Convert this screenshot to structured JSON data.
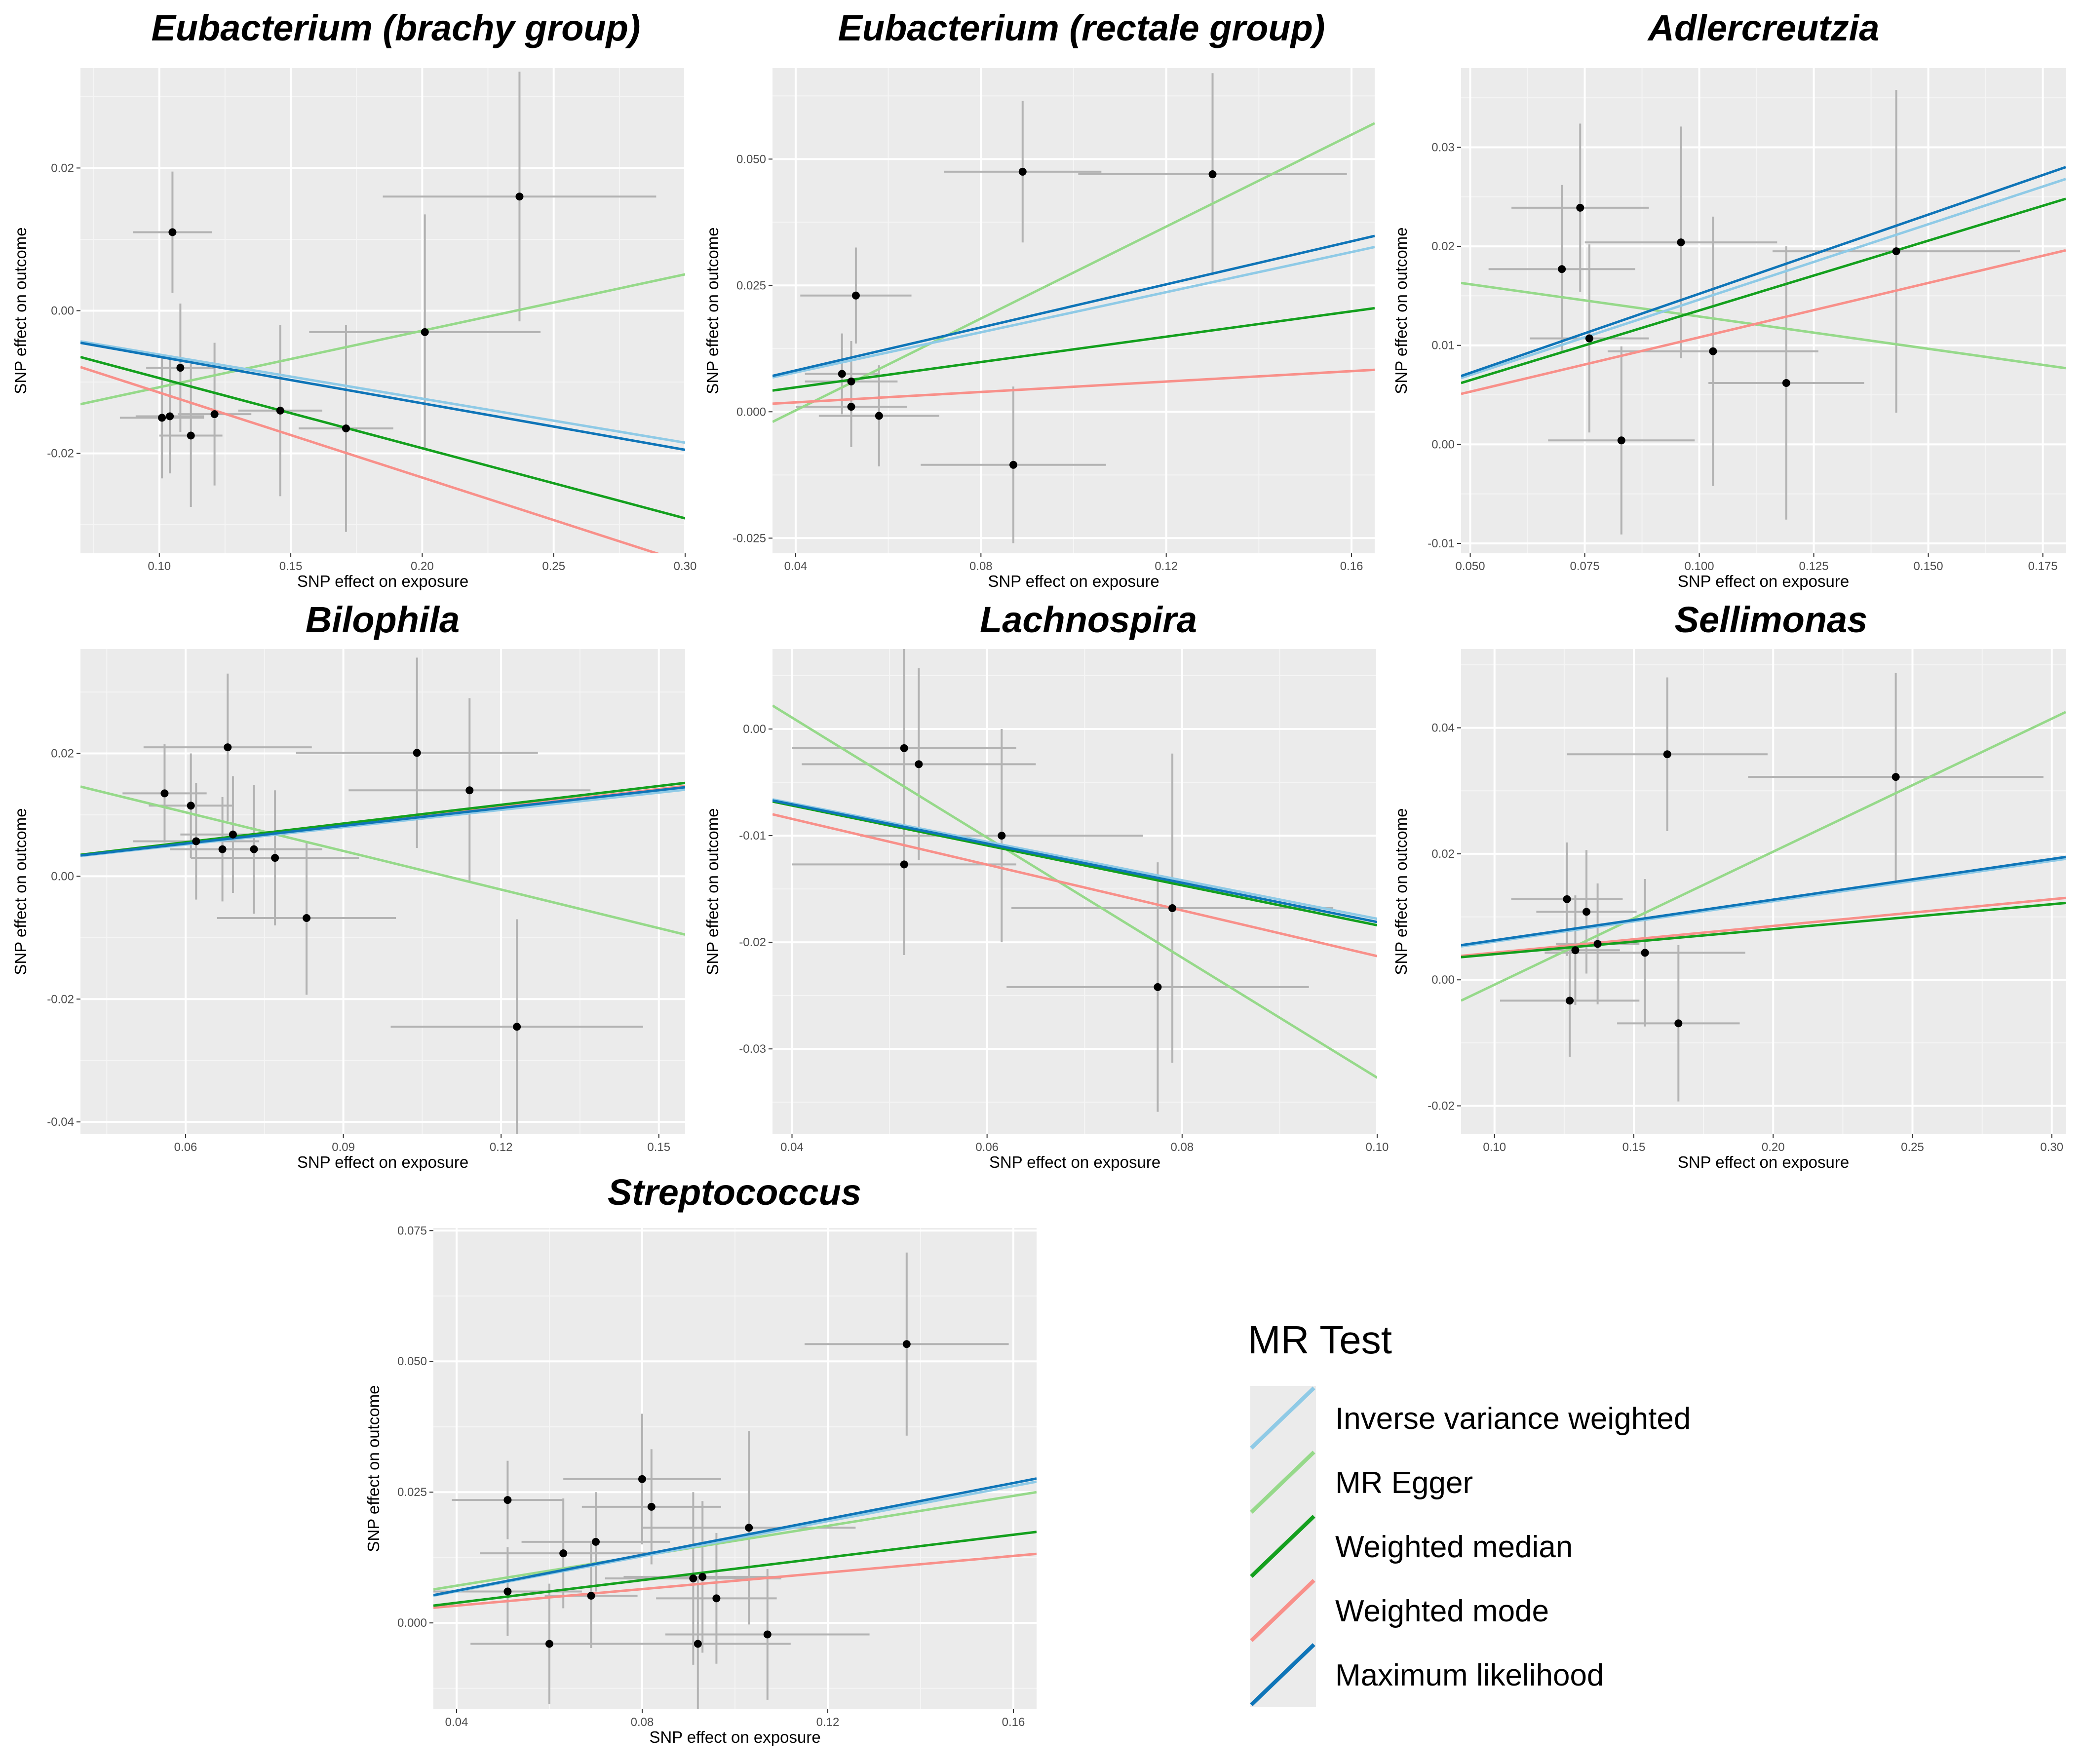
{
  "legend": {
    "title": "MR Test",
    "items": [
      {
        "label": "Inverse variance weighted",
        "color": "#8FCAE6"
      },
      {
        "label": "MR Egger",
        "color": "#96D98A"
      },
      {
        "label": "Weighted median",
        "color": "#14A01E"
      },
      {
        "label": "Weighted mode",
        "color": "#F8908A"
      },
      {
        "label": "Maximum likelihood",
        "color": "#0F75B8"
      }
    ]
  },
  "chart_data": [
    {
      "type": "scatter",
      "title": "Eubacterium (brachy group)",
      "xlabel": "SNP effect on exposure",
      "ylabel": "SNP effect on outcome",
      "xlim": [
        0.07,
        0.3
      ],
      "ylim": [
        -0.034,
        0.034
      ],
      "xticks": [
        0.1,
        0.15,
        0.2,
        0.25,
        0.3
      ],
      "yticks": [
        -0.02,
        0.0,
        0.02
      ],
      "points": [
        {
          "x": 0.105,
          "y": 0.011,
          "xerr": 0.015,
          "yerr": 0.0085
        },
        {
          "x": 0.108,
          "y": -0.008,
          "xerr": 0.013,
          "yerr": 0.009
        },
        {
          "x": 0.101,
          "y": -0.015,
          "xerr": 0.016,
          "yerr": 0.0085
        },
        {
          "x": 0.104,
          "y": -0.0148,
          "xerr": 0.013,
          "yerr": 0.008
        },
        {
          "x": 0.112,
          "y": -0.0175,
          "xerr": 0.012,
          "yerr": 0.01
        },
        {
          "x": 0.121,
          "y": -0.0145,
          "xerr": 0.014,
          "yerr": 0.01
        },
        {
          "x": 0.146,
          "y": -0.014,
          "xerr": 0.016,
          "yerr": 0.012
        },
        {
          "x": 0.171,
          "y": -0.0165,
          "xerr": 0.018,
          "yerr": 0.0145
        },
        {
          "x": 0.201,
          "y": -0.003,
          "xerr": 0.044,
          "yerr": 0.0165
        },
        {
          "x": 0.237,
          "y": 0.016,
          "xerr": 0.052,
          "yerr": 0.0175
        }
      ],
      "lines": [
        {
          "method": "Inverse variance weighted",
          "x": [
            0.07,
            0.3
          ],
          "y": [
            -0.0043,
            -0.0185
          ]
        },
        {
          "method": "MR Egger",
          "x": [
            0.07,
            0.3
          ],
          "y": [
            -0.0131,
            0.0051
          ]
        },
        {
          "method": "Weighted median",
          "x": [
            0.07,
            0.3
          ],
          "y": [
            -0.0065,
            -0.0291
          ]
        },
        {
          "method": "Weighted mode",
          "x": [
            0.07,
            0.3
          ],
          "y": [
            -0.0079,
            -0.0353
          ]
        },
        {
          "method": "Maximum likelihood",
          "x": [
            0.07,
            0.3
          ],
          "y": [
            -0.0045,
            -0.0195
          ]
        }
      ]
    },
    {
      "type": "scatter",
      "title": "Eubacterium (rectale group)",
      "xlabel": "SNP effect on exposure",
      "ylabel": "SNP effect on outcome",
      "xlim": [
        0.035,
        0.165
      ],
      "ylim": [
        -0.028,
        0.068
      ],
      "xticks": [
        0.04,
        0.08,
        0.12,
        0.16
      ],
      "yticks": [
        -0.025,
        0.0,
        0.025,
        0.05
      ],
      "points": [
        {
          "x": 0.053,
          "y": 0.023,
          "xerr": 0.012,
          "yerr": 0.0095
        },
        {
          "x": 0.05,
          "y": 0.0075,
          "xerr": 0.008,
          "yerr": 0.008
        },
        {
          "x": 0.052,
          "y": 0.006,
          "xerr": 0.01,
          "yerr": 0.008
        },
        {
          "x": 0.052,
          "y": 0.001,
          "xerr": 0.012,
          "yerr": 0.008
        },
        {
          "x": 0.058,
          "y": -0.0008,
          "xerr": 0.013,
          "yerr": 0.01
        },
        {
          "x": 0.089,
          "y": 0.0475,
          "xerr": 0.017,
          "yerr": 0.014
        },
        {
          "x": 0.13,
          "y": 0.047,
          "xerr": 0.029,
          "yerr": 0.02
        },
        {
          "x": 0.087,
          "y": -0.0105,
          "xerr": 0.02,
          "yerr": 0.0155
        }
      ],
      "lines": [
        {
          "method": "Inverse variance weighted",
          "x": [
            0.035,
            0.165
          ],
          "y": [
            0.0068,
            0.0326
          ]
        },
        {
          "method": "MR Egger",
          "x": [
            0.035,
            0.165
          ],
          "y": [
            -0.002,
            0.0571
          ]
        },
        {
          "method": "Weighted median",
          "x": [
            0.035,
            0.165
          ],
          "y": [
            0.0042,
            0.0205
          ]
        },
        {
          "method": "Weighted mode",
          "x": [
            0.035,
            0.165
          ],
          "y": [
            0.0016,
            0.0083
          ]
        },
        {
          "method": "Maximum likelihood",
          "x": [
            0.035,
            0.165
          ],
          "y": [
            0.0071,
            0.0348
          ]
        }
      ]
    },
    {
      "type": "scatter",
      "title": "Adlercreutzia",
      "xlabel": "SNP effect on exposure",
      "ylabel": "SNP effect on outcome",
      "xlim": [
        0.048,
        0.18
      ],
      "ylim": [
        -0.011,
        0.038
      ],
      "xticks": [
        0.05,
        0.075,
        0.1,
        0.125,
        0.15,
        0.175
      ],
      "yticks": [
        -0.01,
        0.0,
        0.01,
        0.02,
        0.03
      ],
      "points": [
        {
          "x": 0.07,
          "y": 0.0177,
          "xerr": 0.016,
          "yerr": 0.0085
        },
        {
          "x": 0.074,
          "y": 0.0239,
          "xerr": 0.015,
          "yerr": 0.0085
        },
        {
          "x": 0.076,
          "y": 0.0107,
          "xerr": 0.013,
          "yerr": 0.0095
        },
        {
          "x": 0.083,
          "y": 0.0004,
          "xerr": 0.016,
          "yerr": 0.0095
        },
        {
          "x": 0.096,
          "y": 0.0204,
          "xerr": 0.021,
          "yerr": 0.0117
        },
        {
          "x": 0.103,
          "y": 0.0094,
          "xerr": 0.023,
          "yerr": 0.0136
        },
        {
          "x": 0.119,
          "y": 0.0062,
          "xerr": 0.017,
          "yerr": 0.0138
        },
        {
          "x": 0.143,
          "y": 0.0195,
          "xerr": 0.027,
          "yerr": 0.0163
        }
      ],
      "lines": [
        {
          "method": "Inverse variance weighted",
          "x": [
            0.048,
            0.18
          ],
          "y": [
            0.0067,
            0.0268
          ]
        },
        {
          "method": "MR Egger",
          "x": [
            0.048,
            0.18
          ],
          "y": [
            0.0163,
            0.0077
          ]
        },
        {
          "method": "Weighted median",
          "x": [
            0.048,
            0.18
          ],
          "y": [
            0.0062,
            0.0248
          ]
        },
        {
          "method": "Weighted mode",
          "x": [
            0.048,
            0.18
          ],
          "y": [
            0.0051,
            0.0196
          ]
        },
        {
          "method": "Maximum likelihood",
          "x": [
            0.048,
            0.18
          ],
          "y": [
            0.0069,
            0.028
          ]
        }
      ]
    },
    {
      "type": "scatter",
      "title": "Bilophila",
      "xlabel": "SNP effect on exposure",
      "ylabel": "SNP effect on outcome",
      "xlim": [
        0.04,
        0.155
      ],
      "ylim": [
        -0.042,
        0.037
      ],
      "xticks": [
        0.06,
        0.09,
        0.12,
        0.15
      ],
      "yticks": [
        -0.04,
        -0.02,
        0.0,
        0.02
      ],
      "points": [
        {
          "x": 0.056,
          "y": 0.0135,
          "xerr": 0.008,
          "yerr": 0.008
        },
        {
          "x": 0.061,
          "y": 0.0115,
          "xerr": 0.008,
          "yerr": 0.0085
        },
        {
          "x": 0.068,
          "y": 0.021,
          "xerr": 0.016,
          "yerr": 0.012
        },
        {
          "x": 0.062,
          "y": 0.0057,
          "xerr": 0.012,
          "yerr": 0.0095
        },
        {
          "x": 0.069,
          "y": 0.0068,
          "xerr": 0.01,
          "yerr": 0.0095
        },
        {
          "x": 0.067,
          "y": 0.0044,
          "xerr": 0.01,
          "yerr": 0.0085
        },
        {
          "x": 0.073,
          "y": 0.0044,
          "xerr": 0.013,
          "yerr": 0.0105
        },
        {
          "x": 0.077,
          "y": 0.003,
          "xerr": 0.016,
          "yerr": 0.011
        },
        {
          "x": 0.083,
          "y": -0.0068,
          "xerr": 0.017,
          "yerr": 0.0125
        },
        {
          "x": 0.104,
          "y": 0.0201,
          "xerr": 0.023,
          "yerr": 0.0155
        },
        {
          "x": 0.114,
          "y": 0.014,
          "xerr": 0.023,
          "yerr": 0.015
        },
        {
          "x": 0.123,
          "y": -0.0245,
          "xerr": 0.024,
          "yerr": 0.0175
        }
      ],
      "lines": [
        {
          "method": "Inverse variance weighted",
          "x": [
            0.04,
            0.155
          ],
          "y": [
            0.0033,
            0.0141
          ]
        },
        {
          "method": "MR Egger",
          "x": [
            0.04,
            0.155
          ],
          "y": [
            0.0146,
            -0.0095
          ]
        },
        {
          "method": "Weighted median",
          "x": [
            0.04,
            0.155
          ],
          "y": [
            0.0035,
            0.0152
          ]
        },
        {
          "method": "Weighted mode",
          "x": [
            0.04,
            0.155
          ],
          "y": [
            0.0034,
            0.0147
          ]
        },
        {
          "method": "Maximum likelihood",
          "x": [
            0.04,
            0.155
          ],
          "y": [
            0.0034,
            0.0145
          ]
        }
      ]
    },
    {
      "type": "scatter",
      "title": "Lachnospira",
      "xlabel": "SNP effect on exposure",
      "ylabel": "SNP effect on outcome",
      "xlim": [
        0.038,
        0.1
      ],
      "ylim": [
        -0.038,
        0.0075
      ],
      "xticks": [
        0.04,
        0.06,
        0.08,
        0.1
      ],
      "yticks": [
        -0.03,
        -0.02,
        -0.01,
        0.0
      ],
      "points": [
        {
          "x": 0.0515,
          "y": -0.0018,
          "xerr": 0.0115,
          "yerr": 0.0095
        },
        {
          "x": 0.053,
          "y": -0.0033,
          "xerr": 0.012,
          "yerr": 0.009
        },
        {
          "x": 0.0515,
          "y": -0.0127,
          "xerr": 0.0115,
          "yerr": 0.0085
        },
        {
          "x": 0.0615,
          "y": -0.01,
          "xerr": 0.0145,
          "yerr": 0.01
        },
        {
          "x": 0.079,
          "y": -0.0168,
          "xerr": 0.0165,
          "yerr": 0.0145
        },
        {
          "x": 0.0775,
          "y": -0.0242,
          "xerr": 0.0155,
          "yerr": 0.0117
        }
      ],
      "lines": [
        {
          "method": "Inverse variance weighted",
          "x": [
            0.038,
            0.1
          ],
          "y": [
            -0.0066,
            -0.0178
          ]
        },
        {
          "method": "MR Egger",
          "x": [
            0.038,
            0.1
          ],
          "y": [
            0.0022,
            -0.0327
          ]
        },
        {
          "method": "Weighted median",
          "x": [
            0.038,
            0.1
          ],
          "y": [
            -0.0068,
            -0.0184
          ]
        },
        {
          "method": "Weighted mode",
          "x": [
            0.038,
            0.1
          ],
          "y": [
            -0.008,
            -0.0213
          ]
        },
        {
          "method": "Maximum likelihood",
          "x": [
            0.038,
            0.1
          ],
          "y": [
            -0.0067,
            -0.0181
          ]
        }
      ]
    },
    {
      "type": "scatter",
      "title": "Sellimonas",
      "xlabel": "SNP effect on exposure",
      "ylabel": "SNP effect on outcome",
      "xlim": [
        0.088,
        0.305
      ],
      "ylim": [
        -0.0245,
        0.0525
      ],
      "xticks": [
        0.1,
        0.15,
        0.2,
        0.25,
        0.3
      ],
      "yticks": [
        -0.02,
        0.0,
        0.02,
        0.04
      ],
      "points": [
        {
          "x": 0.162,
          "y": 0.0358,
          "xerr": 0.036,
          "yerr": 0.0122
        },
        {
          "x": 0.244,
          "y": 0.0322,
          "xerr": 0.053,
          "yerr": 0.0165
        },
        {
          "x": 0.126,
          "y": 0.0128,
          "xerr": 0.02,
          "yerr": 0.009
        },
        {
          "x": 0.133,
          "y": 0.0108,
          "xerr": 0.018,
          "yerr": 0.0098
        },
        {
          "x": 0.129,
          "y": 0.0047,
          "xerr": 0.016,
          "yerr": 0.0087
        },
        {
          "x": 0.137,
          "y": 0.0057,
          "xerr": 0.015,
          "yerr": 0.0096
        },
        {
          "x": 0.154,
          "y": 0.0043,
          "xerr": 0.036,
          "yerr": 0.0117
        },
        {
          "x": 0.127,
          "y": -0.0033,
          "xerr": 0.025,
          "yerr": 0.0089
        },
        {
          "x": 0.166,
          "y": -0.0069,
          "xerr": 0.022,
          "yerr": 0.0124
        }
      ],
      "lines": [
        {
          "method": "Inverse variance weighted",
          "x": [
            0.088,
            0.305
          ],
          "y": [
            0.0053,
            0.0192
          ]
        },
        {
          "method": "MR Egger",
          "x": [
            0.088,
            0.305
          ],
          "y": [
            -0.0033,
            0.0425
          ]
        },
        {
          "method": "Weighted median",
          "x": [
            0.088,
            0.305
          ],
          "y": [
            0.0036,
            0.0122
          ]
        },
        {
          "method": "Weighted mode",
          "x": [
            0.088,
            0.305
          ],
          "y": [
            0.0038,
            0.013
          ]
        },
        {
          "method": "Maximum likelihood",
          "x": [
            0.088,
            0.305
          ],
          "y": [
            0.0055,
            0.0195
          ]
        }
      ]
    },
    {
      "type": "scatter",
      "title": "Streptococcus",
      "xlabel": "SNP effect on exposure",
      "ylabel": "SNP effect on outcome",
      "xlim": [
        0.035,
        0.165
      ],
      "ylim": [
        -0.0165,
        0.0755
      ],
      "xticks": [
        0.04,
        0.08,
        0.12,
        0.16
      ],
      "yticks": [
        0.0,
        0.025,
        0.05,
        0.075
      ],
      "points": [
        {
          "x": 0.137,
          "y": 0.0533,
          "xerr": 0.022,
          "yerr": 0.0175
        },
        {
          "x": 0.051,
          "y": 0.0235,
          "xerr": 0.012,
          "yerr": 0.0075
        },
        {
          "x": 0.08,
          "y": 0.0275,
          "xerr": 0.017,
          "yerr": 0.0125
        },
        {
          "x": 0.082,
          "y": 0.0222,
          "xerr": 0.015,
          "yerr": 0.011
        },
        {
          "x": 0.07,
          "y": 0.0155,
          "xerr": 0.016,
          "yerr": 0.0095
        },
        {
          "x": 0.063,
          "y": 0.0133,
          "xerr": 0.018,
          "yerr": 0.0105
        },
        {
          "x": 0.103,
          "y": 0.0182,
          "xerr": 0.023,
          "yerr": 0.0185
        },
        {
          "x": 0.051,
          "y": 0.006,
          "xerr": 0.016,
          "yerr": 0.0085
        },
        {
          "x": 0.069,
          "y": 0.0052,
          "xerr": 0.01,
          "yerr": 0.01
        },
        {
          "x": 0.091,
          "y": 0.0085,
          "xerr": 0.019,
          "yerr": 0.0165
        },
        {
          "x": 0.093,
          "y": 0.0088,
          "xerr": 0.017,
          "yerr": 0.0145
        },
        {
          "x": 0.096,
          "y": 0.0047,
          "xerr": 0.013,
          "yerr": 0.0125
        },
        {
          "x": 0.06,
          "y": -0.004,
          "xerr": 0.017,
          "yerr": 0.0115
        },
        {
          "x": 0.092,
          "y": -0.004,
          "xerr": 0.02,
          "yerr": 0.0125
        },
        {
          "x": 0.107,
          "y": -0.0022,
          "xerr": 0.022,
          "yerr": 0.0125
        }
      ],
      "lines": [
        {
          "method": "Inverse variance weighted",
          "x": [
            0.035,
            0.165
          ],
          "y": [
            0.0052,
            0.027
          ]
        },
        {
          "method": "MR Egger",
          "x": [
            0.035,
            0.165
          ],
          "y": [
            0.0064,
            0.025
          ]
        },
        {
          "method": "Weighted median",
          "x": [
            0.035,
            0.165
          ],
          "y": [
            0.0033,
            0.0174
          ]
        },
        {
          "method": "Weighted mode",
          "x": [
            0.035,
            0.165
          ],
          "y": [
            0.0029,
            0.0132
          ]
        },
        {
          "method": "Maximum likelihood",
          "x": [
            0.035,
            0.165
          ],
          "y": [
            0.0053,
            0.0276
          ]
        }
      ]
    }
  ]
}
